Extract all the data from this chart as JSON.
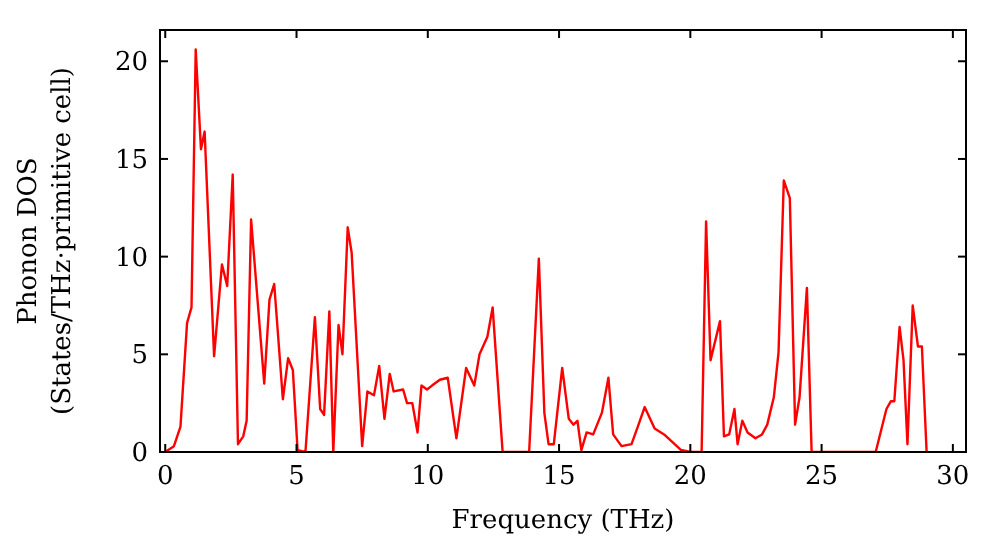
{
  "chart_data": {
    "type": "line",
    "xlabel": "Frequency (THz)",
    "ylabel": "Phonon DOS\n(States/THz·primitive cell)",
    "xlim": [
      -0.2,
      30.5
    ],
    "ylim": [
      0,
      21.6
    ],
    "xticks": [
      0,
      5,
      10,
      15,
      20,
      25,
      30
    ],
    "yticks": [
      0,
      5,
      10,
      15,
      20
    ],
    "grid": false,
    "marker": "none",
    "line_style": "solid",
    "series": [
      {
        "color": "#ff0000",
        "x": [
          0,
          0.33,
          0.58,
          0.83,
          1.0,
          1.16,
          1.36,
          1.5,
          1.86,
          2.16,
          2.36,
          2.57,
          2.77,
          2.97,
          3.1,
          3.27,
          3.77,
          3.97,
          4.15,
          4.48,
          4.68,
          4.86,
          5.04,
          5.34,
          5.7,
          5.9,
          6.05,
          6.25,
          6.4,
          6.6,
          6.75,
          6.95,
          7.1,
          7.5,
          7.7,
          7.95,
          8.15,
          8.35,
          8.55,
          8.7,
          9.06,
          9.21,
          9.41,
          9.61,
          9.76,
          9.97,
          10.16,
          10.46,
          10.76,
          11.09,
          11.46,
          11.77,
          11.97,
          12.27,
          12.47,
          12.85,
          13.86,
          14.23,
          14.44,
          14.6,
          14.8,
          15.12,
          15.37,
          15.55,
          15.7,
          15.85,
          16.05,
          16.3,
          16.63,
          16.88,
          17.06,
          17.38,
          17.76,
          18.0,
          18.26,
          18.64,
          19.0,
          19.65,
          20.0,
          20.43,
          20.6,
          20.77,
          21.13,
          21.28,
          21.48,
          21.68,
          21.8,
          21.98,
          22.18,
          22.48,
          22.73,
          22.93,
          23.18,
          23.36,
          23.56,
          23.79,
          23.99,
          24.16,
          24.44,
          24.62,
          27.06,
          27.47,
          27.64,
          27.77,
          27.97,
          28.12,
          28.27,
          28.47,
          28.67,
          28.82,
          29.0
        ],
        "values": [
          0,
          0.3,
          1.3,
          6.6,
          7.4,
          20.6,
          15.5,
          16.4,
          4.9,
          9.6,
          8.5,
          14.2,
          0.4,
          0.8,
          1.6,
          11.9,
          3.5,
          7.8,
          8.6,
          2.7,
          4.8,
          4.2,
          0.1,
          0,
          6.9,
          2.2,
          1.9,
          7.2,
          0,
          6.5,
          5.0,
          11.5,
          10.2,
          0.3,
          3.1,
          2.9,
          4.4,
          1.7,
          4.0,
          3.1,
          3.2,
          2.5,
          2.5,
          1.0,
          3.4,
          3.2,
          3.4,
          3.7,
          3.8,
          0.7,
          4.3,
          3.4,
          5.0,
          5.9,
          7.4,
          0,
          0,
          9.9,
          2.0,
          0.4,
          0.4,
          4.3,
          1.7,
          1.4,
          1.6,
          0.1,
          1.0,
          0.9,
          2.0,
          3.8,
          0.9,
          0.3,
          0.4,
          1.3,
          2.3,
          1.2,
          0.9,
          0.1,
          0,
          0,
          11.8,
          4.7,
          6.7,
          0.8,
          0.9,
          2.2,
          0.4,
          1.6,
          1.0,
          0.7,
          0.9,
          1.4,
          2.8,
          5.1,
          13.9,
          13.0,
          1.4,
          2.8,
          8.4,
          0,
          0,
          2.2,
          2.6,
          2.6,
          6.4,
          4.7,
          0.4,
          7.5,
          5.4,
          5.4,
          0
        ]
      }
    ]
  }
}
